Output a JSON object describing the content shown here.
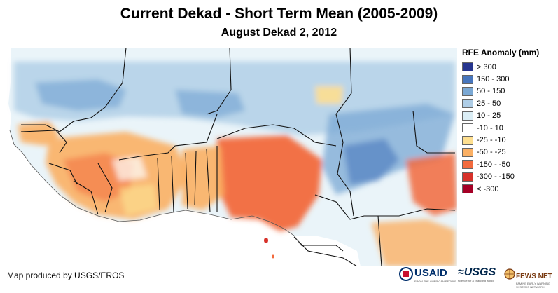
{
  "title": "Current Dekad - Short Term Mean (2005-2009)",
  "subtitle": "August Dekad 2, 2012",
  "credit": "Map produced by USGS/EROS",
  "legend": {
    "title": "RFE Anomaly (mm)",
    "items": [
      {
        "label": "> 300",
        "color": "#26358f"
      },
      {
        "label": "150 - 300",
        "color": "#4776bd"
      },
      {
        "label": "50 - 150",
        "color": "#7aa8d4"
      },
      {
        "label": "25 - 50",
        "color": "#aecde6"
      },
      {
        "label": "10 - 25",
        "color": "#dbeef6"
      },
      {
        "label": "-10 - 10",
        "color": "#ffffff"
      },
      {
        "label": "-25 - -10",
        "color": "#fedf8f"
      },
      {
        "label": "-50 - -25",
        "color": "#fbb064"
      },
      {
        "label": "-150 - -50",
        "color": "#f26a3d"
      },
      {
        "label": "-300 - -150",
        "color": "#d7312a"
      },
      {
        "label": "< -300",
        "color": "#a50026"
      }
    ]
  },
  "logos": {
    "usaid": "USAID",
    "usaid_tagline": "FROM THE AMERICAN PEOPLE",
    "usgs": "USGS",
    "usgs_tagline": "science for a changing world",
    "fews": "FEWS NET",
    "fews_tagline": "FAMINE EARLY WARNING SYSTEMS NETWORK"
  }
}
